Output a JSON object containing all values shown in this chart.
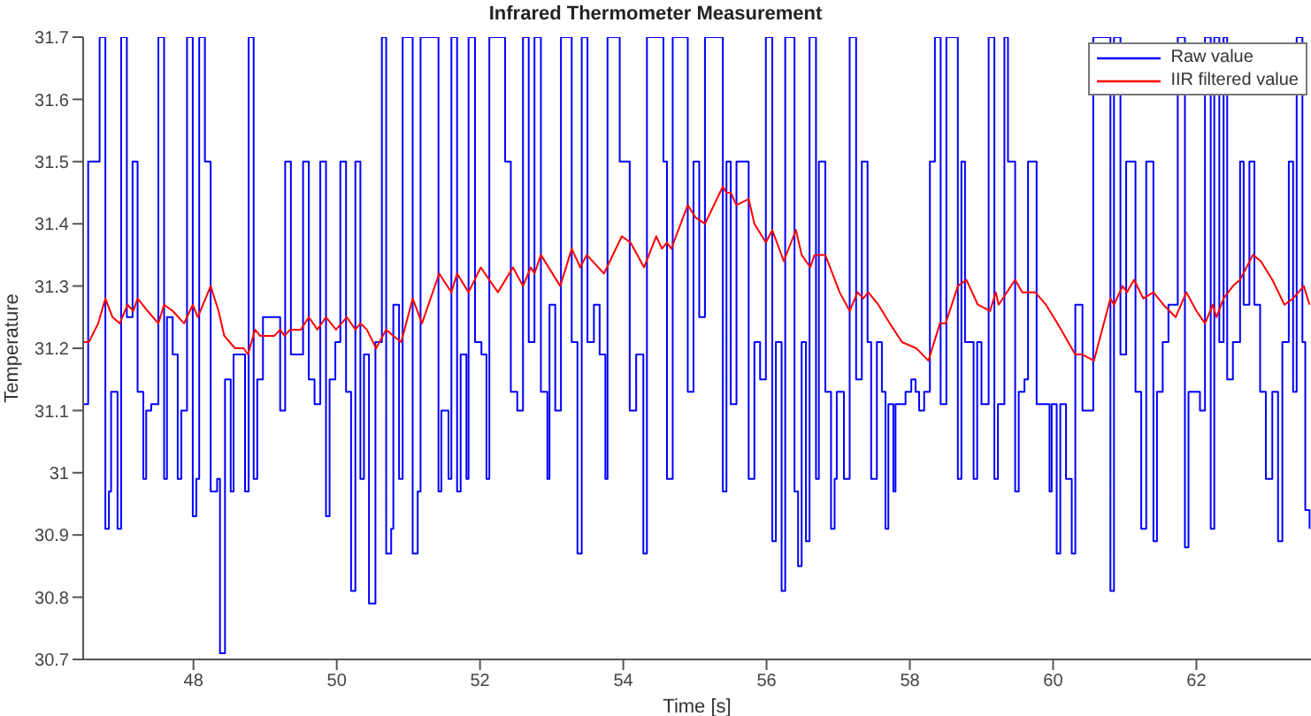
{
  "chart_data": {
    "type": "line",
    "title": "Infrared Thermometer Measurement",
    "xlabel": "Time [s]",
    "ylabel": "Temperature",
    "xlim": [
      46.46,
      63.6
    ],
    "xticks": [
      48,
      50,
      52,
      54,
      56,
      58,
      60,
      62
    ],
    "ylim": [
      30.7,
      31.7
    ],
    "yticks": [
      30.7,
      30.8,
      30.9,
      31,
      31.1,
      31.2,
      31.3,
      31.4,
      31.5,
      31.6,
      31.7
    ],
    "grid": false,
    "legend": "top right",
    "marker": "none",
    "line_style": "solid",
    "series": [
      {
        "name": "Raw value",
        "type": "step",
        "color": "#0000ff",
        "x": [
          46.46,
          46.53,
          46.69,
          46.77,
          46.82,
          46.85,
          46.94,
          46.99,
          47.07,
          47.15,
          47.22,
          47.3,
          47.34,
          47.41,
          47.51,
          47.59,
          47.63,
          47.71,
          47.78,
          47.83,
          47.91,
          47.99,
          48.04,
          48.08,
          48.16,
          48.24,
          48.33,
          48.37,
          48.44,
          48.52,
          48.56,
          48.72,
          48.77,
          48.84,
          48.89,
          48.97,
          49.21,
          49.28,
          49.36,
          49.53,
          49.61,
          49.69,
          49.77,
          49.85,
          49.9,
          49.98,
          50.05,
          50.13,
          50.2,
          50.26,
          50.33,
          50.38,
          50.45,
          50.54,
          50.63,
          50.69,
          50.76,
          50.79,
          50.87,
          50.92,
          51.06,
          51.13,
          51.17,
          51.42,
          51.46,
          51.56,
          51.6,
          51.68,
          51.73,
          51.81,
          51.84,
          51.93,
          52.02,
          52.09,
          52.13,
          52.35,
          52.43,
          52.52,
          52.6,
          52.68,
          52.76,
          52.85,
          52.94,
          52.97,
          53.05,
          53.13,
          53.28,
          53.36,
          53.42,
          53.5,
          53.59,
          53.67,
          53.75,
          53.78,
          53.95,
          54.09,
          54.18,
          54.28,
          54.33,
          54.56,
          54.61,
          54.69,
          54.9,
          54.98,
          55.06,
          55.14,
          55.39,
          55.44,
          55.5,
          55.58,
          55.75,
          55.83,
          55.91,
          55.99,
          56.08,
          56.13,
          56.21,
          56.26,
          56.39,
          56.44,
          56.49,
          56.55,
          56.6,
          56.69,
          56.73,
          56.82,
          56.9,
          56.95,
          56.98,
          57.08,
          57.16,
          57.25,
          57.33,
          57.41,
          57.46,
          57.54,
          57.61,
          57.66,
          57.7,
          57.77,
          57.8,
          57.94,
          58.02,
          58.08,
          58.13,
          58.2,
          58.28,
          58.35,
          58.43,
          58.51,
          58.67,
          58.72,
          58.77,
          58.89,
          58.94,
          59.0,
          59.1,
          59.18,
          59.23,
          59.32,
          59.37,
          59.47,
          59.52,
          59.6,
          59.65,
          59.77,
          59.95,
          59.98,
          60.05,
          60.1,
          60.18,
          60.26,
          60.31,
          60.41,
          60.56,
          60.8,
          60.85,
          60.94,
          61.02,
          61.15,
          61.23,
          61.3,
          61.4,
          61.45,
          61.53,
          61.61,
          61.74,
          61.84,
          61.89,
          62.05,
          62.12,
          62.2,
          62.25,
          62.32,
          62.38,
          62.43,
          62.51,
          62.61,
          62.66,
          62.74,
          62.81,
          62.89,
          62.97,
          63.06,
          63.14,
          63.2,
          63.29,
          63.35,
          63.4,
          63.48,
          63.52,
          63.58
        ],
        "values": [
          31.11,
          31.5,
          31.7,
          30.91,
          30.97,
          31.13,
          30.91,
          31.7,
          31.25,
          31.5,
          31.13,
          30.99,
          31.1,
          31.11,
          31.7,
          30.99,
          31.25,
          31.19,
          30.99,
          31.1,
          31.7,
          30.93,
          30.99,
          31.7,
          31.5,
          30.97,
          30.99,
          30.71,
          31.15,
          30.97,
          31.19,
          30.97,
          31.7,
          30.99,
          31.15,
          31.25,
          31.1,
          31.5,
          31.19,
          31.5,
          31.15,
          31.11,
          31.5,
          30.93,
          31.15,
          31.21,
          31.5,
          31.13,
          30.81,
          31.5,
          30.99,
          31.19,
          30.79,
          31.21,
          31.7,
          30.87,
          30.91,
          31.27,
          30.99,
          31.7,
          30.87,
          30.97,
          31.7,
          30.97,
          31.1,
          30.99,
          31.7,
          30.97,
          31.19,
          30.99,
          31.7,
          31.21,
          31.19,
          30.99,
          31.7,
          31.5,
          31.13,
          31.1,
          31.7,
          31.21,
          31.7,
          31.13,
          30.99,
          31.27,
          31.1,
          31.7,
          31.21,
          30.87,
          31.7,
          31.21,
          31.27,
          31.19,
          30.99,
          31.7,
          31.5,
          31.1,
          31.19,
          30.87,
          31.7,
          31.5,
          30.99,
          31.7,
          31.13,
          31.5,
          31.25,
          31.7,
          30.97,
          31.5,
          31.11,
          31.5,
          30.99,
          31.21,
          31.15,
          31.7,
          30.89,
          31.21,
          30.81,
          31.7,
          30.97,
          30.85,
          31.21,
          30.89,
          31.7,
          30.99,
          31.5,
          31.13,
          30.91,
          30.99,
          31.13,
          30.99,
          31.7,
          31.15,
          31.5,
          31.21,
          30.99,
          31.21,
          31.13,
          30.91,
          31.11,
          30.97,
          31.11,
          31.13,
          31.15,
          31.13,
          31.1,
          31.13,
          31.5,
          31.7,
          31.11,
          31.7,
          30.99,
          31.5,
          31.21,
          30.99,
          31.21,
          31.11,
          31.7,
          30.99,
          31.11,
          31.7,
          31.5,
          30.97,
          31.13,
          31.15,
          31.5,
          31.11,
          30.97,
          31.11,
          30.87,
          31.11,
          30.99,
          30.87,
          31.27,
          31.1,
          31.7,
          30.81,
          31.7,
          31.19,
          31.5,
          31.13,
          30.91,
          31.5,
          30.89,
          31.13,
          31.21,
          31.27,
          31.7,
          30.88,
          31.13,
          31.1,
          31.7,
          30.91,
          31.7,
          31.21,
          31.7,
          31.15,
          31.21,
          31.5,
          31.27,
          31.5,
          31.27,
          31.13,
          30.99,
          31.13,
          30.89,
          31.21,
          31.5,
          31.13,
          31.7,
          31.21,
          30.94,
          30.91
        ]
      },
      {
        "name": "IIR filtered value",
        "type": "line",
        "color": "#ff0000",
        "x": [
          46.46,
          46.54,
          46.67,
          46.77,
          46.87,
          46.97,
          47.08,
          47.16,
          47.22,
          47.36,
          47.51,
          47.59,
          47.71,
          47.87,
          47.99,
          48.06,
          48.24,
          48.35,
          48.43,
          48.58,
          48.7,
          48.76,
          48.86,
          48.93,
          49.13,
          49.21,
          49.27,
          49.35,
          49.5,
          49.61,
          49.73,
          49.85,
          49.99,
          50.14,
          50.26,
          50.33,
          50.42,
          50.55,
          50.69,
          50.79,
          50.9,
          51.06,
          51.19,
          51.43,
          51.6,
          51.68,
          51.84,
          52.01,
          52.25,
          52.46,
          52.6,
          52.71,
          52.76,
          52.85,
          53.12,
          53.28,
          53.4,
          53.49,
          53.73,
          53.98,
          54.1,
          54.29,
          54.46,
          54.54,
          54.61,
          54.67,
          54.9,
          55.01,
          55.14,
          55.39,
          55.44,
          55.5,
          55.58,
          55.75,
          55.83,
          55.99,
          56.08,
          56.24,
          56.41,
          56.49,
          56.61,
          56.67,
          56.82,
          57.02,
          57.16,
          57.27,
          57.35,
          57.42,
          57.56,
          57.72,
          57.89,
          58.09,
          58.26,
          58.42,
          58.5,
          58.67,
          58.79,
          58.95,
          59.12,
          59.2,
          59.24,
          59.47,
          59.57,
          59.75,
          59.9,
          60.06,
          60.31,
          60.41,
          60.57,
          60.8,
          60.85,
          60.97,
          61.03,
          61.13,
          61.26,
          61.4,
          61.54,
          61.71,
          61.86,
          62.0,
          62.12,
          62.23,
          62.28,
          62.38,
          62.51,
          62.61,
          62.79,
          62.9,
          63.06,
          63.23,
          63.35,
          63.5,
          63.58
        ],
        "values": [
          31.21,
          31.21,
          31.24,
          31.28,
          31.25,
          31.24,
          31.27,
          31.26,
          31.28,
          31.26,
          31.24,
          31.27,
          31.26,
          31.24,
          31.27,
          31.25,
          31.3,
          31.26,
          31.22,
          31.2,
          31.2,
          31.19,
          31.23,
          31.22,
          31.22,
          31.23,
          31.22,
          31.23,
          31.23,
          31.25,
          31.23,
          31.25,
          31.23,
          31.25,
          31.23,
          31.24,
          31.23,
          31.2,
          31.23,
          31.22,
          31.21,
          31.28,
          31.24,
          31.32,
          31.29,
          31.32,
          31.29,
          31.33,
          31.29,
          31.33,
          31.3,
          31.33,
          31.32,
          31.35,
          31.3,
          31.36,
          31.33,
          31.35,
          31.32,
          31.38,
          31.37,
          31.33,
          31.38,
          31.36,
          31.37,
          31.36,
          31.43,
          31.41,
          31.4,
          31.46,
          31.45,
          31.45,
          31.43,
          31.44,
          31.4,
          31.37,
          31.39,
          31.34,
          31.39,
          31.35,
          31.33,
          31.35,
          31.35,
          31.29,
          31.26,
          31.29,
          31.28,
          31.29,
          31.27,
          31.24,
          31.21,
          31.2,
          31.18,
          31.24,
          31.24,
          31.3,
          31.31,
          31.27,
          31.26,
          31.29,
          31.27,
          31.31,
          31.29,
          31.29,
          31.27,
          31.24,
          31.19,
          31.19,
          31.18,
          31.28,
          31.27,
          31.3,
          31.29,
          31.31,
          31.28,
          31.29,
          31.27,
          31.25,
          31.29,
          31.26,
          31.24,
          31.27,
          31.25,
          31.28,
          31.3,
          31.31,
          31.35,
          31.34,
          31.31,
          31.27,
          31.28,
          31.3,
          31.27
        ]
      }
    ]
  }
}
